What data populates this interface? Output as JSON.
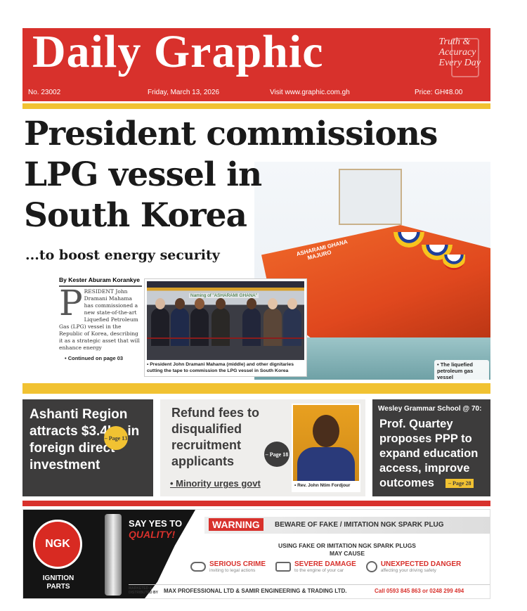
{
  "masthead": {
    "title": "Daily Graphic",
    "tagline": [
      "Truth &",
      "Accuracy",
      "Every Day"
    ],
    "issue": "No. 23002",
    "date": "Friday, March 13, 2026",
    "website": "Visit www.graphic.com.gh",
    "price": "Price: GH¢8.00"
  },
  "lead": {
    "headline": [
      "President commissions",
      "LPG vessel in",
      "South Korea"
    ],
    "subheadline": "...to boost energy security",
    "byline": "By Kester Aburam Korankye",
    "dropcap": "P",
    "body_first": "RESIDENT John Dramani Mahama has commissioned a new state-of-the-art Liquefied",
    "body_rest": "Petroleum Gas (LPG) vessel in the Republic of Korea, describing it as a strategic asset that will enhance energy",
    "continued": "• Continued on page 03",
    "inset_banner": "Naming of \"ASHARAMI GHANA\"",
    "inset_caption": "• President John Dramani Mahama (middle) and other dignitaries cutting the tape to commission the LPG vessel in South Korea",
    "ship_name": "ASHARAMI GHANA",
    "ship_port": "MAJURO",
    "ship_caption": "• The liquefied petroleum gas vessel"
  },
  "stories": [
    {
      "headline": "Ashanti Region attracts $3.4bn in foreign direct investment",
      "page": "– Page 13"
    },
    {
      "headline": "Refund fees to disqualified recruitment applicants",
      "page": "– Page 18",
      "bullet": "• Minority urges govt",
      "photo_caption": "• Rev. John Ntim Fordjour"
    },
    {
      "kicker": "Wesley Grammar School @ 70:",
      "headline": "Prof. Quartey proposes PPP to expand education access, improve outcomes",
      "page": "– Page 28"
    }
  ],
  "ad": {
    "brand": "NGK",
    "brand_sub": "IGNITION PARTS",
    "slogan1": "SAY YES TO",
    "slogan2": "QUALITY!",
    "warning": "WARNING",
    "warning_text": "BEWARE OF FAKE / IMITATION NGK SPARK PLUG",
    "cause": "USING FAKE OR IMITATION NGK SPARK PLUGS",
    "cause2": "MAY CAUSE",
    "risks": [
      {
        "title": "SERIOUS CRIME",
        "sub": "inviting to legal actions",
        "icon": "handcuffs-icon"
      },
      {
        "title": "SEVERE DAMAGE",
        "sub": "to the engine of your car",
        "icon": "engine-icon"
      },
      {
        "title": "UNEXPECTED DANGER",
        "sub": "affecting your driving safety",
        "icon": "steering-wheel-icon"
      }
    ],
    "marketed": "MARKETED & DISTRIBUTED BY",
    "distributor": "MAX PROFESSIONAL LTD & SAMIR ENGINEERING & TRADING LTD.",
    "phone": "Call 0593 845 863 or 0248 299 494"
  },
  "colors": {
    "brand_red": "#d8312c",
    "accent_yellow": "#f1c232",
    "dark_panel": "#3d3c3c"
  }
}
